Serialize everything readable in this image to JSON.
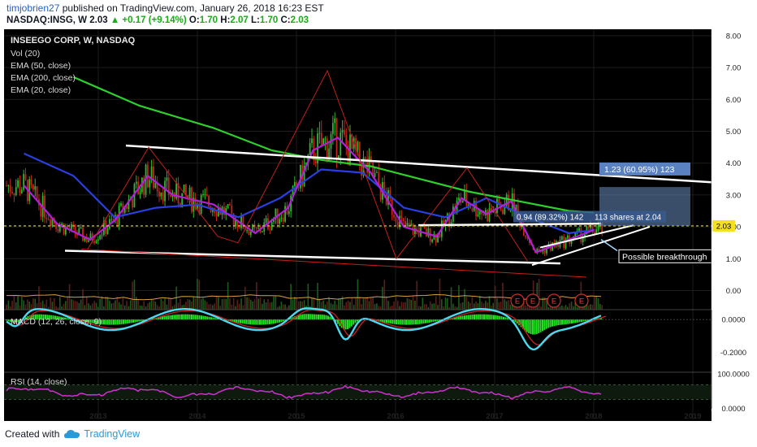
{
  "header": {
    "user": "timjobrien27",
    "published": "published on TradingView.com, January 26, 2018 16:23 EST",
    "symbol": "NASDAQ:INSG, W",
    "last": "2.03",
    "change": "+0.17 (+9.14%)",
    "o_label": "O:",
    "o": "1.70",
    "h_label": "H:",
    "h": "2.07",
    "l_label": "L:",
    "l": "1.70",
    "c_label": "C:",
    "c": "2.03"
  },
  "footer": {
    "created_with": "Created with",
    "brand": "TradingView"
  },
  "colors": {
    "background": "#000000",
    "up_candle": "#2fb82f",
    "down_candle": "#c8241d",
    "ema50": "#2a3fe0",
    "ema200": "#2ed02e",
    "ema20": "#b020d8",
    "trendline": "#ffffff",
    "red_line": "#c2201a",
    "macd": "#4dd8f0",
    "signal": "#d02020",
    "hist": "#22e022",
    "rsi": "#d030d0",
    "price_label_bg": "#f4e020",
    "measure_box": "#6a8ec0"
  },
  "chart_data": [
    {
      "type": "line",
      "title": "INSEEGO CORP, W, NASDAQ",
      "legend": [
        "Vol (20)",
        "EMA (50, close)",
        "EMA (200, close)",
        "EMA (20, close)"
      ],
      "x_ticks": [
        "2013",
        "2014",
        "2015",
        "2016",
        "2017",
        "2018",
        "2019"
      ],
      "y_ticks": [
        "0.00",
        "1.00",
        "2.00",
        "3.00",
        "4.00",
        "5.00",
        "6.00",
        "7.00",
        "8.00"
      ],
      "ylim": [
        -0.35,
        8.1
      ],
      "last_price_label": "2.03",
      "annotations": {
        "measure_top": "1.23 (60.95%) 123",
        "measure_mid_a": "0.94 (89.32%) 142",
        "measure_mid_b": "113 shares at 2.04",
        "callout": "Possible breakthrough",
        "earnings": [
          "E",
          "E",
          "E",
          "E"
        ]
      },
      "series": [
        {
          "name": "EMA (50, close)",
          "x": [
            "2012-04",
            "2012-10",
            "2013-03",
            "2013-08",
            "2014-01",
            "2014-06",
            "2014-11",
            "2015-04",
            "2015-09",
            "2016-02",
            "2016-07",
            "2016-12",
            "2017-05",
            "2017-10",
            "2018-01"
          ],
          "values": [
            4.3,
            3.6,
            2.3,
            2.6,
            2.7,
            2.3,
            2.9,
            3.8,
            3.7,
            2.6,
            2.3,
            2.9,
            2.3,
            1.8,
            1.9
          ]
        },
        {
          "name": "EMA (200, close)",
          "x": [
            "2012-10",
            "2013-06",
            "2014-03",
            "2014-10",
            "2015-04",
            "2015-10",
            "2016-04",
            "2016-10",
            "2017-04",
            "2017-10",
            "2018-01"
          ],
          "values": [
            6.7,
            5.8,
            5.1,
            4.4,
            4.1,
            3.9,
            3.5,
            3.1,
            2.8,
            2.5,
            2.45
          ]
        },
        {
          "name": "EMA (20, close)",
          "x": [
            "2012-04",
            "2012-08",
            "2012-12",
            "2013-03",
            "2013-07",
            "2013-10",
            "2014-03",
            "2014-08",
            "2014-12",
            "2015-03",
            "2015-06",
            "2015-10",
            "2016-02",
            "2016-06",
            "2016-09",
            "2016-12",
            "2017-03",
            "2017-06",
            "2017-09",
            "2018-01"
          ],
          "values": [
            3.3,
            2.1,
            1.6,
            2.2,
            3.6,
            3.0,
            2.7,
            1.8,
            2.6,
            4.4,
            4.8,
            3.7,
            2.0,
            1.7,
            2.9,
            2.4,
            2.8,
            1.2,
            1.5,
            1.9
          ]
        }
      ]
    },
    {
      "type": "bar",
      "title": "MACD (12, 26, close, 9)",
      "y_ticks": [
        "0.0000",
        "-0.2000"
      ],
      "ylim": [
        -0.32,
        0.06
      ]
    },
    {
      "type": "line",
      "title": "RSI (14, close)",
      "y_ticks": [
        "100.0000",
        "0.0000"
      ],
      "ylim": [
        0,
        100
      ],
      "levels": [
        70,
        30
      ]
    }
  ]
}
